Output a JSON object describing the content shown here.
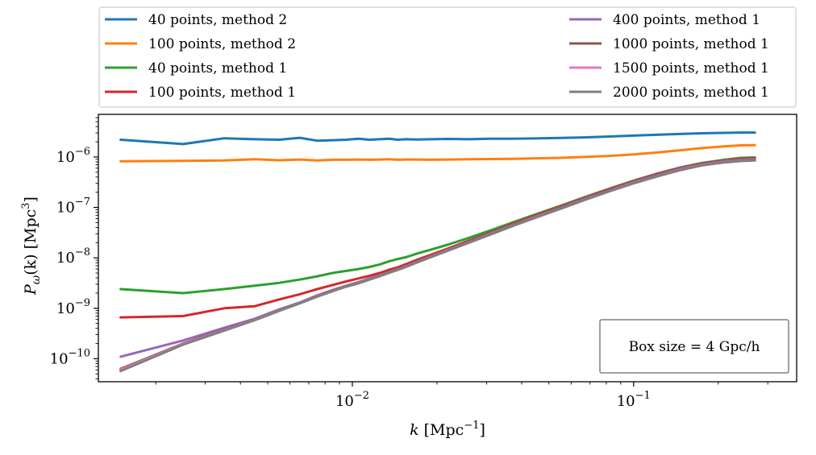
{
  "chart_data": {
    "type": "line",
    "xscale": "log",
    "yscale": "log",
    "xlim": [
      0.00125,
      0.38
    ],
    "ylim": [
      3.5e-11,
      7e-06
    ],
    "xlabel": {
      "var": "k",
      "unit_pre": "[Mpc",
      "unit_exp": "−1",
      "unit_post": "]"
    },
    "ylabel": {
      "var": "P",
      "sub": "ω",
      "arg": "(k)",
      "unit_pre": "[Mpc",
      "unit_exp": "3",
      "unit_post": "]"
    },
    "x_ticks": [
      {
        "value": 0.01,
        "base": "10",
        "exp": "−2"
      },
      {
        "value": 0.1,
        "base": "10",
        "exp": "−1"
      }
    ],
    "y_ticks": [
      {
        "value": 1e-10,
        "base": "10",
        "exp": "−10"
      },
      {
        "value": 1e-09,
        "base": "10",
        "exp": "−9"
      },
      {
        "value": 1e-08,
        "base": "10",
        "exp": "−8"
      },
      {
        "value": 1e-07,
        "base": "10",
        "exp": "−7"
      },
      {
        "value": 1e-06,
        "base": "10",
        "exp": "−6"
      }
    ],
    "annotation": "Box size = 4 Gpc/h",
    "legend_position": "above plot, two columns",
    "x": [
      0.0015,
      0.0025,
      0.0035,
      0.0045,
      0.0055,
      0.0065,
      0.0075,
      0.0085,
      0.0095,
      0.0105,
      0.0115,
      0.0125,
      0.0135,
      0.0145,
      0.0155,
      0.017,
      0.019,
      0.022,
      0.026,
      0.031,
      0.037,
      0.045,
      0.055,
      0.067,
      0.082,
      0.1,
      0.12,
      0.145,
      0.175,
      0.21,
      0.24,
      0.27
    ],
    "series": [
      {
        "name": "40 points, method 2",
        "color": "#1f77b4",
        "values": [
          2.2e-06,
          1.8e-06,
          2.35e-06,
          2.25e-06,
          2.2e-06,
          2.4e-06,
          2.1e-06,
          2.15e-06,
          2.2e-06,
          2.3e-06,
          2.2e-06,
          2.25e-06,
          2.3e-06,
          2.2e-06,
          2.25e-06,
          2.22e-06,
          2.25e-06,
          2.28e-06,
          2.25e-06,
          2.3e-06,
          2.3e-06,
          2.33e-06,
          2.38e-06,
          2.45e-06,
          2.55e-06,
          2.65e-06,
          2.75e-06,
          2.85e-06,
          2.95e-06,
          3e-06,
          3.05e-06,
          3.05e-06
        ]
      },
      {
        "name": "100 points, method 2",
        "color": "#ff7f0e",
        "values": [
          8.2e-07,
          8.4e-07,
          8.5e-07,
          9e-07,
          8.6e-07,
          8.9e-07,
          8.5e-07,
          8.8e-07,
          8.8e-07,
          8.9e-07,
          8.8e-07,
          8.9e-07,
          9e-07,
          8.8e-07,
          8.9e-07,
          8.9e-07,
          8.8e-07,
          8.9e-07,
          9e-07,
          9.1e-07,
          9.2e-07,
          9.4e-07,
          9.6e-07,
          1e-06,
          1.05e-06,
          1.12e-06,
          1.22e-06,
          1.35e-06,
          1.5e-06,
          1.62e-06,
          1.7e-06,
          1.72e-06
        ]
      },
      {
        "name": "40 points, method 1",
        "color": "#2ca02c",
        "values": [
          2.4e-09,
          2e-09,
          2.4e-09,
          2.8e-09,
          3.2e-09,
          3.7e-09,
          4.3e-09,
          5e-09,
          5.5e-09,
          6e-09,
          6.6e-09,
          7.4e-09,
          8.5e-09,
          9.5e-09,
          1.03e-08,
          1.22e-08,
          1.45e-08,
          1.85e-08,
          2.5e-08,
          3.5e-08,
          5e-08,
          7.3e-08,
          1.08e-07,
          1.6e-07,
          2.35e-07,
          3.4e-07,
          4.6e-07,
          6.1e-07,
          7.6e-07,
          8.8e-07,
          9.6e-07,
          9.8e-07
        ]
      },
      {
        "name": "100 points, method 1",
        "color": "#d62728",
        "values": [
          6.6e-10,
          7e-10,
          1e-09,
          1.1e-09,
          1.5e-09,
          1.9e-09,
          2.4e-09,
          2.9e-09,
          3.4e-09,
          3.9e-09,
          4.4e-09,
          5e-09,
          5.8e-09,
          6.5e-09,
          7.5e-09,
          9.2e-09,
          1.15e-08,
          1.55e-08,
          2.2e-08,
          3.2e-08,
          4.7e-08,
          7e-08,
          1.04e-07,
          1.55e-07,
          2.3e-07,
          3.3e-07,
          4.5e-07,
          6e-07,
          7.4e-07,
          8.5e-07,
          9.2e-07,
          9.4e-07
        ]
      },
      {
        "name": "400 points, method 1",
        "color": "#9467bd",
        "values": [
          1.1e-10,
          2.3e-10,
          4.1e-10,
          6.2e-10,
          9.5e-10,
          1.3e-09,
          1.8e-09,
          2.3e-09,
          2.8e-09,
          3.3e-09,
          3.9e-09,
          4.5e-09,
          5.3e-09,
          6e-09,
          6.9e-09,
          8.5e-09,
          1.08e-08,
          1.47e-08,
          2.1e-08,
          3.1e-08,
          4.5e-08,
          6.7e-08,
          1e-07,
          1.5e-07,
          2.2e-07,
          3.2e-07,
          4.35e-07,
          5.8e-07,
          7.2e-07,
          8.3e-07,
          8.9e-07,
          9.1e-07
        ]
      },
      {
        "name": "1000 points, method 1",
        "color": "#8c564b",
        "values": [
          6.3e-11,
          2e-10,
          3.8e-10,
          6e-10,
          9.2e-10,
          1.28e-09,
          1.75e-09,
          2.25e-09,
          2.75e-09,
          3.2e-09,
          3.8e-09,
          4.4e-09,
          5.2e-09,
          5.9e-09,
          6.8e-09,
          8.3e-09,
          1.06e-08,
          1.44e-08,
          2.05e-08,
          3e-08,
          4.4e-08,
          6.5e-08,
          9.7e-08,
          1.45e-07,
          2.15e-07,
          3.1e-07,
          4.2e-07,
          5.6e-07,
          7e-07,
          8e-07,
          8.6e-07,
          8.8e-07
        ]
      },
      {
        "name": "1500 points, method 1",
        "color": "#e377c2",
        "values": [
          6e-11,
          1.95e-10,
          3.7e-10,
          5.9e-10,
          9e-10,
          1.26e-09,
          1.72e-09,
          2.2e-09,
          2.7e-09,
          3.15e-09,
          3.75e-09,
          4.35e-09,
          5.1e-09,
          5.8e-09,
          6.7e-09,
          8.2e-09,
          1.04e-08,
          1.42e-08,
          2.02e-08,
          2.95e-08,
          4.3e-08,
          6.4e-08,
          9.5e-08,
          1.42e-07,
          2.1e-07,
          3.05e-07,
          4.1e-07,
          5.5e-07,
          6.9e-07,
          7.9e-07,
          8.4e-07,
          8.6e-07
        ]
      },
      {
        "name": "2000 points, method 1",
        "color": "#7f7f7f",
        "values": [
          5.7e-11,
          1.9e-10,
          3.6e-10,
          5.8e-10,
          8.9e-10,
          1.25e-09,
          1.7e-09,
          2.18e-09,
          2.68e-09,
          3.12e-09,
          3.7e-09,
          4.3e-09,
          5.05e-09,
          5.75e-09,
          6.6e-09,
          8.1e-09,
          1.03e-08,
          1.4e-08,
          2e-08,
          2.9e-08,
          4.25e-08,
          6.3e-08,
          9.4e-08,
          1.4e-07,
          2.08e-07,
          3e-07,
          4.05e-07,
          5.4e-07,
          6.8e-07,
          7.8e-07,
          8.3e-07,
          8.5e-07
        ]
      }
    ]
  }
}
